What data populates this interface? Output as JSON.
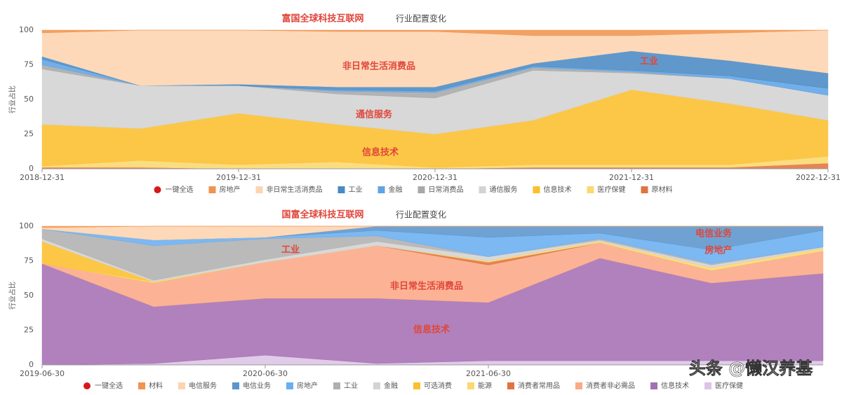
{
  "chart_data": [
    {
      "type": "area",
      "stacked": true,
      "title": "富国全球科技互联网",
      "subtitle": "行业配置变化",
      "ylabel": "行业占比",
      "legend_toggle": "一键全选",
      "grid": false,
      "categories": [
        "2018-12-31",
        null,
        "2019-12-31",
        null,
        "2020-12-31",
        null,
        "2021-12-31",
        null,
        "2022-12-31"
      ],
      "ylim": [
        0,
        100
      ],
      "yticks": [
        0,
        25,
        50,
        75,
        100
      ],
      "annotations": [
        "非日常生活消费品",
        "通信服务",
        "信息技术",
        "工业"
      ],
      "series": [
        {
          "name": "房地产",
          "color": "#f0944f",
          "values": [
            2,
            0,
            0,
            1,
            1,
            4,
            4,
            2,
            0
          ]
        },
        {
          "name": "非日常生活消费品",
          "color": "#fdd4b0",
          "values": [
            17,
            40,
            39,
            40,
            40,
            20,
            11,
            20,
            31
          ]
        },
        {
          "name": "工业",
          "color": "#4a8ac4",
          "values": [
            2,
            0,
            1,
            2,
            3,
            2,
            14,
            11,
            11
          ]
        },
        {
          "name": "金融",
          "color": "#5fa4e6",
          "values": [
            4,
            0,
            0,
            1,
            1,
            1,
            1,
            2,
            5
          ]
        },
        {
          "name": "日常消费品",
          "color": "#a8a8a8",
          "values": [
            3,
            0,
            0,
            2,
            4,
            2,
            1,
            0,
            0
          ]
        },
        {
          "name": "通信服务",
          "color": "#d3d3d3",
          "values": [
            40,
            31,
            20,
            22,
            26,
            36,
            12,
            18,
            18
          ]
        },
        {
          "name": "信息技术",
          "color": "#fcbf2e",
          "values": [
            30,
            23,
            37,
            27,
            24,
            32,
            54,
            44,
            26
          ]
        },
        {
          "name": "医疗保健",
          "color": "#fbd870",
          "values": [
            1,
            5,
            3,
            5,
            1,
            2,
            2,
            2,
            5
          ]
        },
        {
          "name": "原材料",
          "color": "#e07340",
          "values": [
            1,
            1,
            0,
            0,
            0,
            1,
            1,
            1,
            4
          ]
        }
      ]
    },
    {
      "type": "area",
      "stacked": true,
      "title": "国富全球科技互联网",
      "subtitle": "行业配置变化",
      "ylabel": "行业占比",
      "legend_toggle": "一键全选",
      "grid": false,
      "watermark": "头条 @懒汉养基",
      "categories": [
        "2019-06-30",
        null,
        "2020-06-30",
        null,
        "2021-06-30",
        null,
        null,
        null
      ],
      "ylim": [
        0,
        100
      ],
      "yticks": [
        0,
        25,
        50,
        75,
        100
      ],
      "annotations": [
        "电信业务",
        "房地产",
        "工业",
        "非日常生活消费品",
        "信息技术"
      ],
      "series": [
        {
          "name": "材料",
          "color": "#f0944f",
          "values": [
            1,
            0,
            0,
            0,
            0,
            0,
            0,
            0
          ]
        },
        {
          "name": "电信服务",
          "color": "#fdd4b0",
          "values": [
            1,
            10,
            8,
            0,
            0,
            0,
            0,
            0
          ]
        },
        {
          "name": "电信业务",
          "color": "#5b95cc",
          "values": [
            0,
            0,
            0,
            3,
            8,
            5,
            17,
            3
          ]
        },
        {
          "name": "房地产",
          "color": "#6aaef0",
          "values": [
            0,
            4,
            1,
            4,
            14,
            4,
            10,
            12
          ]
        },
        {
          "name": "工业",
          "color": "#b0b0b0",
          "values": [
            7,
            25,
            15,
            4,
            0,
            1,
            1,
            0
          ]
        },
        {
          "name": "金融",
          "color": "#d3d3d3",
          "values": [
            2,
            1,
            2,
            3,
            3,
            1,
            2,
            1
          ]
        },
        {
          "name": "可选消费",
          "color": "#fcbf2e",
          "values": [
            16,
            0,
            0,
            0,
            0,
            0,
            0,
            0
          ]
        },
        {
          "name": "能源",
          "color": "#fbd870",
          "values": [
            0,
            1,
            0,
            0,
            1,
            1,
            2,
            2
          ]
        },
        {
          "name": "消费者常用品",
          "color": "#e07340",
          "values": [
            0,
            0,
            0,
            0,
            2,
            0,
            0,
            0
          ]
        },
        {
          "name": "消费者非必需品",
          "color": "#fca986",
          "values": [
            0,
            17,
            26,
            38,
            27,
            11,
            9,
            16
          ]
        },
        {
          "name": "信息技术",
          "color": "#a56fb3",
          "values": [
            73,
            41,
            41,
            47,
            42,
            74,
            56,
            63
          ]
        },
        {
          "name": "医疗保健",
          "color": "#dcc4e6",
          "values": [
            0,
            1,
            7,
            1,
            3,
            3,
            3,
            3
          ]
        }
      ]
    }
  ]
}
